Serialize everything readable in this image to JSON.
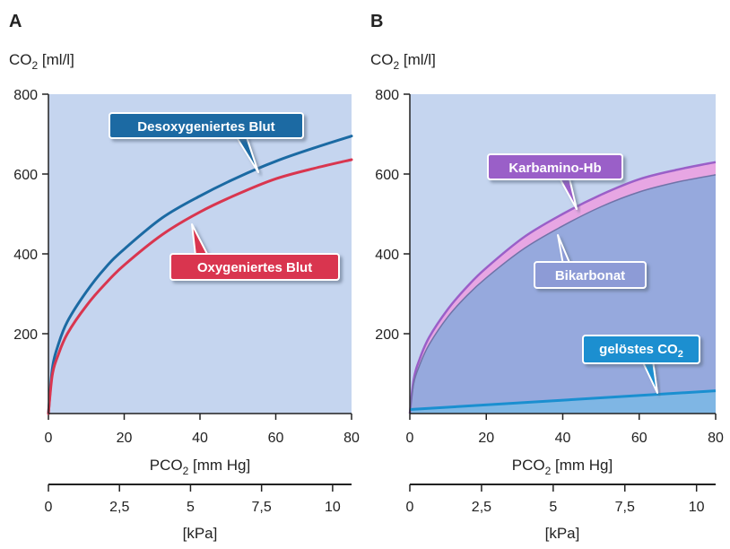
{
  "colors": {
    "plot_bg": "#c5d5ef",
    "deoxy": "#1b6aa3",
    "oxy": "#d9364f",
    "carbamino_band": "#e7a6e3",
    "carbamino_line": "#9a5fc8",
    "carbamino_label": "#9a5fc8",
    "bicarbonate_fill": "#96a9dd",
    "bicarbonate_label": "#8d9bd6",
    "dissolved_fill": "#7fb6e4",
    "dissolved_line": "#1a8fd0",
    "dissolved_label": "#1a8fd0"
  },
  "chart_data": [
    {
      "panel": "A",
      "type": "line",
      "ylabel": "CO2 [ml/l]",
      "xlabel": "PCO2 [mm Hg]",
      "x2label": "[kPa]",
      "xlim": [
        0,
        80
      ],
      "ylim": [
        0,
        800
      ],
      "x_ticks": [
        "0",
        "20",
        "40",
        "60",
        "80"
      ],
      "y_ticks": [
        "200",
        "400",
        "600",
        "800"
      ],
      "x2_ticks": [
        "0",
        "2,5",
        "5",
        "7,5",
        "10"
      ],
      "series": [
        {
          "name": "Desoxygeniertes Blut",
          "x": [
            0,
            1,
            2.5,
            5,
            10,
            15,
            20,
            30,
            40,
            50,
            60,
            70,
            80
          ],
          "y": [
            0,
            110,
            170,
            230,
            305,
            365,
            412,
            490,
            545,
            592,
            632,
            665,
            695
          ]
        },
        {
          "name": "Oxygeniertes Blut",
          "x": [
            0,
            1,
            2.5,
            5,
            10,
            15,
            20,
            30,
            40,
            50,
            60,
            70,
            80
          ],
          "y": [
            0,
            95,
            145,
            200,
            270,
            325,
            372,
            448,
            505,
            550,
            588,
            614,
            636
          ]
        }
      ]
    },
    {
      "panel": "B",
      "type": "area",
      "ylabel": "CO2 [ml/l]",
      "xlabel": "PCO2 [mm Hg]",
      "x2label": "[kPa]",
      "xlim": [
        0,
        80
      ],
      "ylim": [
        0,
        800
      ],
      "x_ticks": [
        "0",
        "20",
        "40",
        "60",
        "80"
      ],
      "y_ticks": [
        "200",
        "400",
        "600",
        "800"
      ],
      "x2_ticks": [
        "0",
        "2,5",
        "5",
        "7,5",
        "10"
      ],
      "series": [
        {
          "name": "Karbamino-Hb",
          "x": [
            0,
            1,
            2.5,
            5,
            10,
            15,
            20,
            30,
            40,
            50,
            60,
            70,
            80
          ],
          "y": [
            0,
            85,
            135,
            190,
            262,
            318,
            365,
            443,
            500,
            548,
            587,
            611,
            630
          ]
        },
        {
          "name": "Bikarbonat",
          "x": [
            0,
            1,
            2.5,
            5,
            10,
            15,
            20,
            30,
            40,
            50,
            60,
            70,
            80
          ],
          "y": [
            0,
            75,
            120,
            172,
            243,
            296,
            340,
            414,
            470,
            518,
            555,
            580,
            598
          ]
        },
        {
          "name": "gelöstes CO2",
          "x": [
            0,
            80
          ],
          "y": [
            10,
            57
          ]
        }
      ]
    }
  ],
  "labels": {
    "panel_a": "A",
    "panel_b": "B",
    "y_unit_co": "CO",
    "y_unit_sub": "2",
    "y_unit_rest": " [ml/l]",
    "x_title_pco": "PCO",
    "x_title_sub": "2",
    "x_title_rest": " [mm Hg]",
    "kpa_title": "[kPa]",
    "deoxy": "Desoxygeniertes Blut",
    "oxy": "Oxygeniertes Blut",
    "carbamino": "Karbamino-Hb",
    "bicarbonate": "Bikarbonat",
    "dissolved_main": "gelöstes CO",
    "dissolved_sub": "2"
  }
}
